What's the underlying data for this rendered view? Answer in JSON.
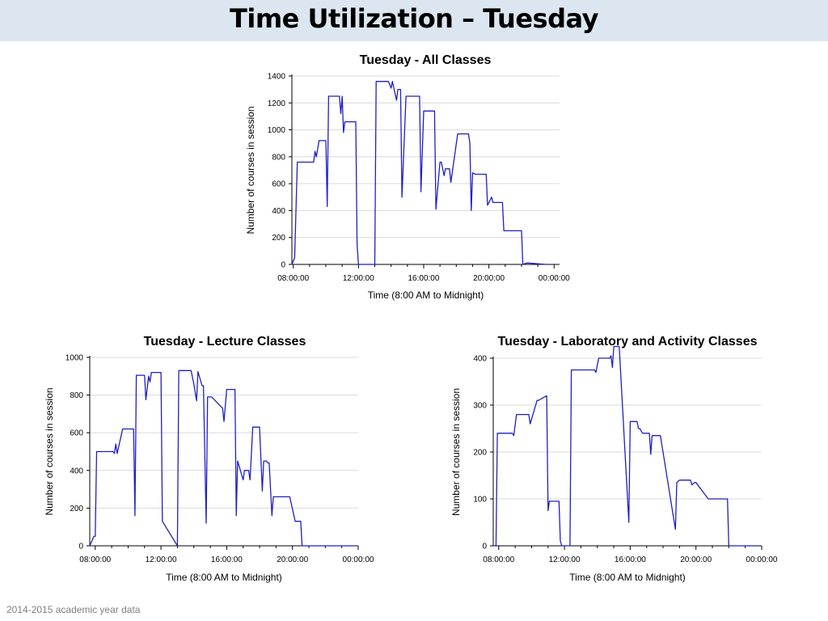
{
  "slide": {
    "title": "Time Utilization – Tuesday",
    "footnote": "2014-2015 academic year data"
  },
  "colors": {
    "series": "#1f1fc8",
    "grid": "#d9d9d9",
    "header_bg": "#dce6f0"
  },
  "chart_data": [
    {
      "id": "all",
      "type": "line",
      "title": "Tuesday - All Classes",
      "xlabel": "Time (8:00 AM to Midnight)",
      "ylabel": "Number of courses in session",
      "xlim": [
        "07:55",
        "00:20"
      ],
      "ylim": [
        0,
        1400
      ],
      "yticks": [
        0,
        200,
        400,
        600,
        800,
        1000,
        1200,
        1400
      ],
      "xticks": [
        "08:00:00",
        "12:00:00",
        "16:00:00",
        "20:00:00",
        "00:00:00"
      ],
      "grid": true,
      "legend": "none",
      "series": [
        {
          "x": [
            "07:55",
            "08:05",
            "08:15",
            "08:20",
            "08:25",
            "09:15",
            "09:20",
            "09:25",
            "09:35",
            "09:40",
            "10:00",
            "10:05",
            "10:10",
            "10:15",
            "10:50",
            "10:55",
            "11:00",
            "11:05",
            "11:10",
            "11:15",
            "11:50",
            "11:55",
            "12:00",
            "12:05",
            "12:10",
            "12:15",
            "13:00",
            "13:05",
            "13:10",
            "13:50",
            "14:00",
            "14:05",
            "14:20",
            "14:25",
            "14:35",
            "14:40",
            "14:55",
            "15:00",
            "15:45",
            "15:50",
            "16:00",
            "16:05",
            "16:40",
            "16:45",
            "17:00",
            "17:05",
            "17:15",
            "17:20",
            "17:35",
            "17:40",
            "18:05",
            "18:10",
            "18:45",
            "18:50",
            "18:55",
            "19:00",
            "19:10",
            "19:15",
            "19:50",
            "19:55",
            "20:10",
            "20:15",
            "20:50",
            "20:55",
            "21:40",
            "21:45",
            "22:00",
            "22:05",
            "22:20",
            "22:25",
            "23:30"
          ],
          "y": [
            0,
            50,
            760,
            760,
            760,
            760,
            840,
            800,
            920,
            920,
            920,
            430,
            1250,
            1250,
            1250,
            1120,
            1250,
            980,
            1060,
            1060,
            1060,
            150,
            0,
            0,
            0,
            0,
            0,
            1360,
            1360,
            1360,
            1310,
            1360,
            1220,
            1300,
            1300,
            500,
            1250,
            1250,
            1250,
            540,
            1140,
            1140,
            1140,
            410,
            760,
            760,
            660,
            710,
            710,
            610,
            970,
            970,
            970,
            900,
            400,
            680,
            670,
            670,
            670,
            440,
            500,
            460,
            460,
            250,
            250,
            250,
            250,
            0,
            10,
            10,
            0
          ]
        }
      ]
    },
    {
      "id": "lecture",
      "type": "line",
      "title": "Tuesday - Lecture Classes",
      "xlabel": "Time (8:00 AM to Midnight)",
      "ylabel": "Number of courses in session",
      "xlim": [
        "07:40",
        "00:00"
      ],
      "ylim": [
        0,
        1000
      ],
      "yticks": [
        0,
        200,
        400,
        600,
        800,
        1000
      ],
      "xticks": [
        "08:00:00",
        "12:00:00",
        "16:00:00",
        "20:00:00",
        "00:00:00"
      ],
      "grid": true,
      "legend": "none",
      "series": [
        {
          "x": [
            "07:40",
            "07:55",
            "08:00",
            "08:05",
            "09:05",
            "09:10",
            "09:15",
            "09:20",
            "09:40",
            "09:45",
            "10:20",
            "10:25",
            "10:30",
            "11:00",
            "11:05",
            "11:15",
            "11:20",
            "11:25",
            "11:45",
            "12:00",
            "12:05",
            "13:00",
            "13:05",
            "13:50",
            "14:00",
            "14:10",
            "14:15",
            "14:30",
            "14:35",
            "14:45",
            "14:50",
            "15:00",
            "15:05",
            "15:45",
            "15:50",
            "16:00",
            "16:10",
            "16:15",
            "16:30",
            "16:35",
            "16:40",
            "17:00",
            "17:05",
            "17:20",
            "17:25",
            "17:35",
            "17:40",
            "18:00",
            "18:10",
            "18:15",
            "18:25",
            "18:30",
            "18:35",
            "18:45",
            "18:50",
            "19:45",
            "19:50",
            "20:10",
            "20:15",
            "20:30",
            "20:35",
            "21:00",
            "21:05",
            "22:00",
            "22:05",
            "22:20",
            "22:25",
            "23:50"
          ],
          "y": [
            0,
            50,
            50,
            500,
            500,
            490,
            540,
            490,
            620,
            620,
            620,
            160,
            905,
            905,
            775,
            900,
            870,
            920,
            920,
            920,
            130,
            0,
            930,
            930,
            860,
            770,
            925,
            850,
            850,
            120,
            790,
            790,
            790,
            730,
            660,
            830,
            830,
            830,
            830,
            160,
            450,
            350,
            400,
            400,
            350,
            630,
            630,
            630,
            290,
            450,
            450,
            440,
            440,
            160,
            260,
            260,
            260,
            130,
            130,
            130,
            0,
            0,
            0,
            0,
            0,
            0,
            0,
            0
          ]
        }
      ]
    },
    {
      "id": "lab",
      "type": "line",
      "title": "Tuesday - Laboratory and Activity Classes",
      "xlabel": "Time (8:00 AM to Midnight)",
      "ylabel": "Number of courses in session",
      "xlim": [
        "07:40",
        "00:00"
      ],
      "ylim": [
        0,
        430
      ],
      "yticks": [
        0,
        100,
        200,
        300,
        400
      ],
      "xticks": [
        "08:00:00",
        "12:00:00",
        "16:00:00",
        "20:00:00",
        "00:00:00"
      ],
      "grid": true,
      "legend": "none",
      "series": [
        {
          "x": [
            "07:40",
            "07:50",
            "07:55",
            "08:00",
            "08:50",
            "08:55",
            "09:05",
            "09:50",
            "09:55",
            "10:20",
            "10:25",
            "10:55",
            "11:00",
            "11:05",
            "11:15",
            "11:40",
            "11:45",
            "11:50",
            "11:55",
            "12:00",
            "12:20",
            "12:25",
            "13:50",
            "13:55",
            "14:05",
            "14:10",
            "14:45",
            "14:50",
            "14:55",
            "15:00",
            "15:05",
            "15:10",
            "15:15",
            "15:20",
            "15:55",
            "16:00",
            "16:05",
            "16:25",
            "16:30",
            "16:35",
            "16:45",
            "16:50",
            "17:10",
            "17:15",
            "17:20",
            "17:30",
            "17:35",
            "17:45",
            "17:50",
            "18:45",
            "18:50",
            "19:00",
            "19:40",
            "19:45",
            "19:55",
            "20:00",
            "20:45",
            "20:50",
            "21:00",
            "21:55",
            "22:00",
            "22:05",
            "23:00",
            "23:50"
          ],
          "y": [
            0,
            0,
            240,
            240,
            240,
            235,
            280,
            280,
            260,
            310,
            310,
            320,
            75,
            95,
            95,
            95,
            10,
            0,
            0,
            0,
            0,
            375,
            375,
            370,
            400,
            400,
            400,
            405,
            380,
            425,
            425,
            425,
            425,
            425,
            50,
            265,
            265,
            265,
            250,
            250,
            240,
            240,
            240,
            195,
            235,
            235,
            235,
            235,
            235,
            35,
            135,
            140,
            140,
            130,
            135,
            135,
            100,
            100,
            100,
            100,
            0,
            0,
            0,
            0
          ]
        }
      ]
    }
  ]
}
